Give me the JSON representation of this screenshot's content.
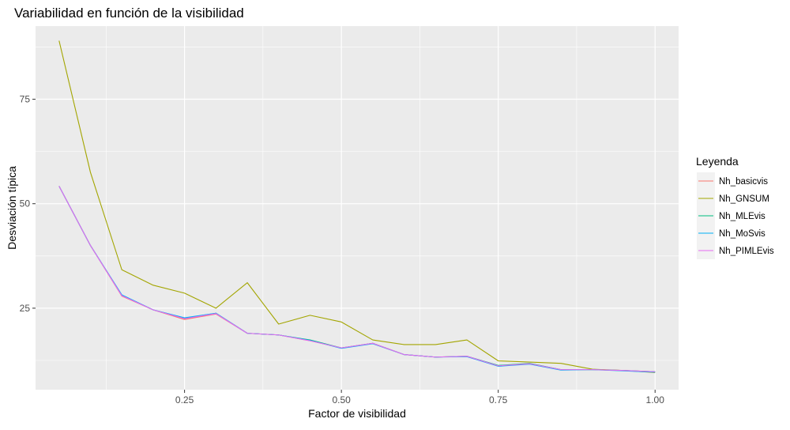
{
  "chart_data": {
    "type": "line",
    "title": "Variabilidad en función de la visibilidad",
    "xlabel": "Factor de visibilidad",
    "ylabel": "Desviación típica",
    "xlim": [
      0.0125,
      1.0375
    ],
    "ylim": [
      5.5,
      92.5
    ],
    "x_ticks": [
      0.25,
      0.5,
      0.75,
      1.0
    ],
    "x_tick_labels": [
      "0.25",
      "0.50",
      "0.75",
      "1.00"
    ],
    "y_ticks": [
      25,
      50,
      75
    ],
    "y_tick_labels": [
      "25",
      "50",
      "75"
    ],
    "grid": true,
    "legend_position": "right",
    "legend_title": "Leyenda",
    "x": [
      0.05,
      0.1,
      0.15,
      0.2,
      0.25,
      0.3,
      0.35,
      0.4,
      0.45,
      0.5,
      0.55,
      0.6,
      0.65,
      0.7,
      0.75,
      0.8,
      0.85,
      0.9,
      0.95,
      1.0
    ],
    "series": [
      {
        "name": "Nh_basicvis",
        "color": "#F8766D",
        "values": [
          54.2,
          40.0,
          27.9,
          24.6,
          22.3,
          23.6,
          19.0,
          18.6,
          17.2,
          15.5,
          16.6,
          13.9,
          13.3,
          13.5,
          11.2,
          11.7,
          10.3,
          10.3,
          10.1,
          9.8
        ]
      },
      {
        "name": "Nh_GNSUM",
        "color": "#A3A500",
        "values": [
          89.0,
          57.5,
          34.2,
          30.5,
          28.6,
          25.0,
          31.1,
          21.2,
          23.3,
          21.7,
          17.4,
          16.3,
          16.3,
          17.4,
          12.4,
          12.1,
          11.8,
          10.4,
          10.1,
          9.6
        ]
      },
      {
        "name": "Nh_MLEvis",
        "color": "#00BF7D",
        "values": [
          54.2,
          40.0,
          28.1,
          24.6,
          22.6,
          23.8,
          19.0,
          18.6,
          17.4,
          15.5,
          16.6,
          13.9,
          13.3,
          13.5,
          11.3,
          11.8,
          10.3,
          10.3,
          10.1,
          9.8
        ]
      },
      {
        "name": "Nh_MoSvis",
        "color": "#00B0F6",
        "values": [
          54.2,
          40.0,
          28.2,
          24.6,
          22.7,
          23.8,
          19.0,
          18.6,
          17.3,
          15.4,
          16.5,
          13.9,
          13.3,
          13.4,
          11.1,
          11.6,
          10.2,
          10.3,
          10.0,
          9.7
        ]
      },
      {
        "name": "Nh_PIMLEvis",
        "color": "#E76BF3",
        "values": [
          54.2,
          40.0,
          28.0,
          24.6,
          22.5,
          23.7,
          19.0,
          18.6,
          17.2,
          15.5,
          16.6,
          13.9,
          13.3,
          13.5,
          11.2,
          11.7,
          10.3,
          10.3,
          10.1,
          9.8
        ]
      }
    ]
  },
  "colors": {
    "panel_background": "#EBEBEB",
    "grid_line": "#FFFFFF",
    "axis_text": "#4D4D4D",
    "title_text": "#000000"
  }
}
